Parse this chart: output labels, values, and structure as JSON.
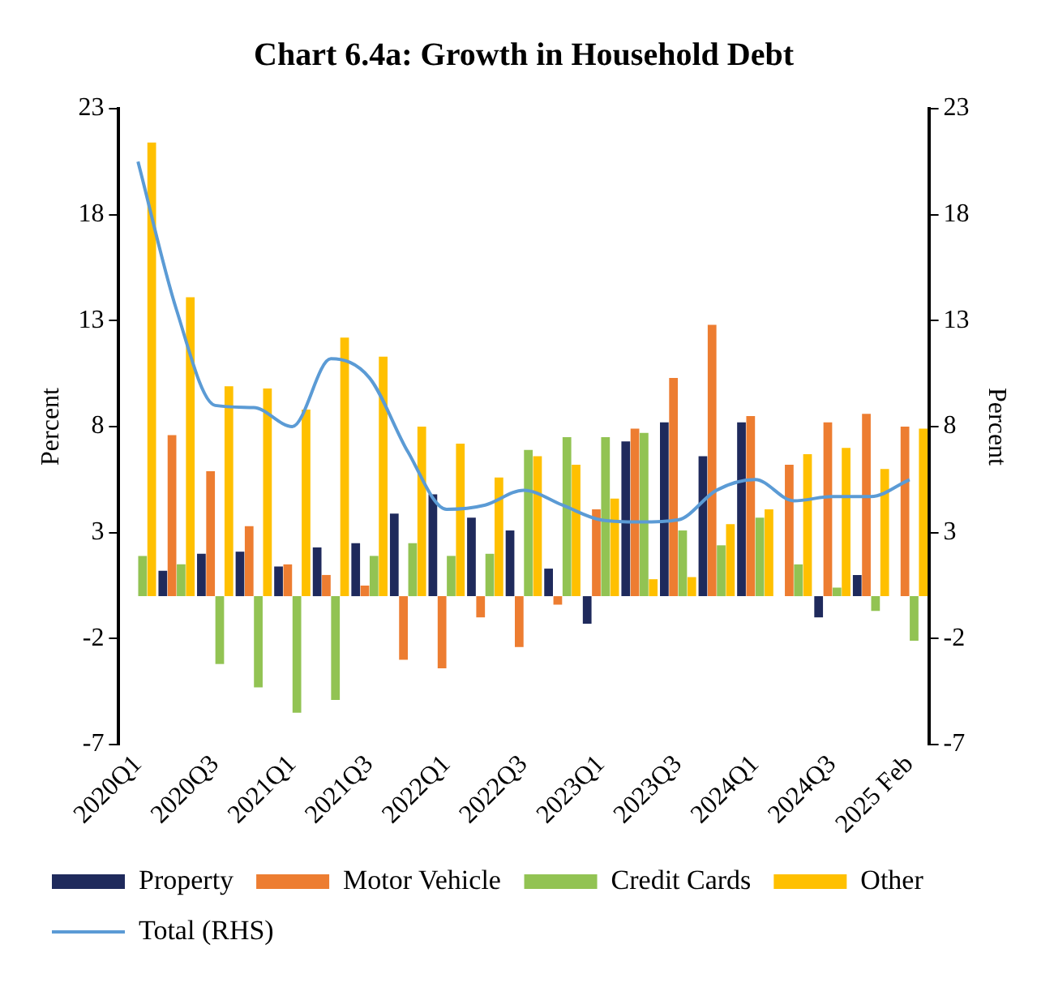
{
  "chart_data": {
    "type": "bar",
    "title": "Chart 6.4a: Growth in Household Debt",
    "ylabel": "Percent",
    "y2label": "Percent",
    "categories": [
      "2020Q1",
      null,
      "2020Q3",
      null,
      "2021Q1",
      null,
      "2021Q3",
      null,
      "2022Q1",
      null,
      "2022Q3",
      null,
      "2023Q1",
      null,
      "2023Q3",
      null,
      "2024Q1",
      null,
      "2024Q3",
      null,
      "2025 Feb"
    ],
    "series": [
      {
        "name": "Property",
        "color": "#1f2a5c",
        "values": [
          null,
          1.2,
          2.0,
          2.1,
          1.4,
          2.3,
          2.5,
          3.9,
          4.8,
          3.7,
          3.1,
          1.3,
          -1.3,
          7.3,
          8.2,
          6.6,
          8.2,
          0,
          -1.0,
          1.0,
          null
        ]
      },
      {
        "name": "Motor Vehicle",
        "color": "#ed7d31",
        "values": [
          null,
          7.6,
          5.9,
          3.3,
          1.5,
          1.0,
          0.5,
          -3.0,
          -3.4,
          -1.0,
          -2.4,
          -0.4,
          4.1,
          7.9,
          10.3,
          12.8,
          8.5,
          6.2,
          8.2,
          8.6,
          8.0
        ]
      },
      {
        "name": "Credit Cards",
        "color": "#92c353",
        "values": [
          1.9,
          1.5,
          -3.2,
          -4.3,
          -5.5,
          -4.9,
          1.9,
          2.5,
          1.9,
          2.0,
          6.9,
          7.5,
          7.5,
          7.7,
          3.1,
          2.4,
          3.7,
          1.5,
          0.4,
          -0.7,
          -2.1
        ]
      },
      {
        "name": "Other",
        "color": "#ffc000",
        "values": [
          21.4,
          14.1,
          9.9,
          9.8,
          8.8,
          12.2,
          11.3,
          8.0,
          7.2,
          5.6,
          6.6,
          6.2,
          4.6,
          0.8,
          0.9,
          3.4,
          4.1,
          6.7,
          7.0,
          6.0,
          7.9
        ]
      },
      {
        "name": "Total (RHS)",
        "type": "line",
        "axis": "y2",
        "color": "#5b9bd5",
        "values": [
          20.5,
          13.5,
          9.0,
          8.9,
          8.0,
          11.2,
          10.3,
          6.8,
          4.1,
          4.3,
          5.0,
          4.3,
          3.6,
          3.5,
          3.6,
          5.0,
          5.5,
          4.5,
          4.7,
          4.7,
          5.5
        ]
      }
    ],
    "ylim": [
      -7,
      23
    ],
    "yticks": [
      -7,
      -2,
      3,
      8,
      13,
      18,
      23
    ],
    "y2lim": [
      -7,
      23
    ],
    "y2ticks": [
      -7,
      -2,
      3,
      8,
      13,
      18,
      23
    ],
    "grid": false,
    "legend": "bottom",
    "marker": "none"
  }
}
